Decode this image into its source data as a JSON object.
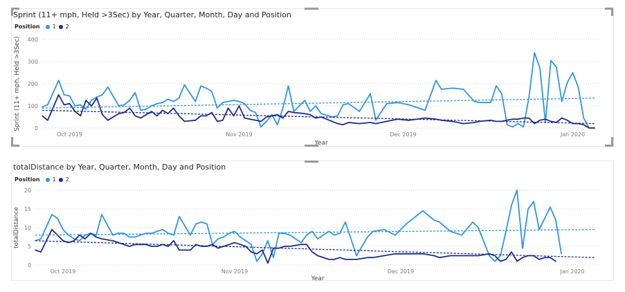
{
  "colors": {
    "position1": "#2f94e6",
    "position2": "#1c2a8a",
    "trend": "#1c2a8a"
  },
  "legend": {
    "title": "Position",
    "items": [
      "1",
      "2"
    ]
  },
  "chart_data": [
    {
      "type": "line",
      "title": "Sprint (11+ mph, Held >3Sec) by Year, Quarter, Month, Day and Position",
      "xlabel": "Year",
      "ylabel": "Sprint (11+ mph, Held >3Sec)",
      "ylim": [
        0,
        400
      ],
      "yticks": [
        "0",
        "100",
        "200",
        "300",
        "400"
      ],
      "xticks": [
        {
          "label": "Oct 2019",
          "x": 5
        },
        {
          "label": "Nov 2019",
          "x": 36
        },
        {
          "label": "Dec 2019",
          "x": 66
        },
        {
          "label": "Jan 2020",
          "x": 97
        }
      ],
      "xlim": [
        0,
        102
      ],
      "series": [
        {
          "name": "1",
          "x": [
            0,
            1,
            3,
            4,
            5,
            6,
            7,
            8,
            9,
            10,
            11,
            12,
            14,
            15,
            16,
            17,
            18,
            19,
            20,
            21,
            22,
            23,
            24,
            25,
            26,
            28,
            29,
            30,
            31,
            32,
            33,
            34,
            35,
            36,
            37,
            38,
            39,
            40,
            41,
            42,
            43,
            44,
            45,
            46,
            48,
            49,
            50,
            51,
            53,
            54,
            55,
            56,
            58,
            60,
            61,
            63,
            65,
            67,
            70,
            72,
            73,
            75,
            77,
            79,
            80,
            82,
            83,
            84,
            85,
            86,
            87,
            88,
            89,
            90,
            91,
            92,
            93,
            94,
            95,
            96,
            97,
            98,
            99,
            100,
            101
          ],
          "values": [
            95,
            105,
            215,
            150,
            145,
            100,
            105,
            85,
            125,
            140,
            150,
            185,
            100,
            105,
            125,
            160,
            80,
            85,
            100,
            110,
            115,
            130,
            120,
            135,
            195,
            120,
            190,
            180,
            165,
            90,
            115,
            120,
            125,
            120,
            110,
            80,
            70,
            5,
            30,
            60,
            15,
            90,
            190,
            75,
            125,
            75,
            100,
            65,
            50,
            55,
            105,
            110,
            75,
            155,
            35,
            110,
            115,
            105,
            80,
            215,
            175,
            180,
            175,
            120,
            115,
            115,
            190,
            155,
            15,
            5,
            20,
            5,
            140,
            340,
            270,
            25,
            305,
            275,
            120,
            205,
            250,
            185,
            45,
            0,
            0
          ]
        },
        {
          "name": "2",
          "x": [
            0,
            1,
            3,
            4,
            5,
            6,
            7,
            8,
            9,
            10,
            11,
            12,
            14,
            15,
            16,
            17,
            18,
            19,
            20,
            21,
            22,
            23,
            24,
            25,
            26,
            28,
            29,
            30,
            31,
            32,
            33,
            34,
            35,
            36,
            37,
            38,
            39,
            40,
            41,
            42,
            43,
            44,
            45,
            46,
            48,
            49,
            50,
            51,
            53,
            54,
            55,
            56,
            58,
            60,
            61,
            63,
            65,
            67,
            70,
            72,
            73,
            75,
            77,
            79,
            80,
            82,
            83,
            84,
            85,
            86,
            87,
            88,
            89,
            90,
            91,
            92,
            93,
            94,
            95,
            96,
            97,
            98,
            99,
            100,
            101
          ],
          "values": [
            55,
            35,
            150,
            105,
            110,
            75,
            55,
            125,
            100,
            135,
            60,
            35,
            65,
            70,
            90,
            55,
            45,
            60,
            75,
            55,
            80,
            65,
            90,
            55,
            30,
            35,
            55,
            55,
            70,
            30,
            35,
            90,
            55,
            100,
            45,
            40,
            35,
            30,
            50,
            55,
            60,
            45,
            75,
            70,
            65,
            60,
            45,
            50,
            30,
            20,
            15,
            25,
            20,
            25,
            20,
            30,
            40,
            35,
            45,
            40,
            35,
            30,
            20,
            25,
            30,
            35,
            30,
            30,
            35,
            40,
            40,
            45,
            45,
            20,
            35,
            40,
            30,
            25,
            45,
            35,
            20,
            20,
            15,
            0,
            0
          ]
        }
      ],
      "trends": [
        {
          "name": "1",
          "values": [
            90,
            135
          ]
        },
        {
          "name": "2",
          "values": [
            80,
            20
          ]
        }
      ]
    },
    {
      "type": "line",
      "title": "totalDistance by Year, Quarter, Month, Day and Position",
      "xlabel": "Year",
      "ylabel": "totalDistance",
      "ylim": [
        0,
        20
      ],
      "yticks": [
        "0",
        "5",
        "10",
        "15",
        "20"
      ],
      "xticks": [
        {
          "label": "Oct 2019",
          "x": 5
        },
        {
          "label": "Nov 2019",
          "x": 36
        },
        {
          "label": "Dec 2019",
          "x": 66
        },
        {
          "label": "Jan 2020",
          "x": 97
        }
      ],
      "xlim": [
        0,
        102
      ],
      "series": [
        {
          "name": "1",
          "x": [
            0,
            1,
            3,
            4,
            5,
            6,
            7,
            8,
            9,
            10,
            11,
            12,
            14,
            15,
            16,
            17,
            18,
            19,
            20,
            21,
            22,
            23,
            24,
            25,
            26,
            28,
            29,
            30,
            31,
            32,
            33,
            34,
            35,
            36,
            37,
            38,
            39,
            40,
            41,
            42,
            43,
            44,
            45,
            46,
            48,
            49,
            50,
            51,
            53,
            54,
            55,
            56,
            58,
            60,
            61,
            63,
            65,
            67,
            70,
            72,
            73,
            75,
            77,
            79,
            80,
            82,
            83,
            84,
            85,
            86,
            87,
            88,
            89,
            90,
            91,
            92,
            93,
            94,
            95,
            96,
            97,
            98,
            99,
            100,
            101
          ],
          "values": [
            6.5,
            7,
            13.5,
            12.5,
            9.5,
            8,
            7,
            6.5,
            8,
            8.5,
            8,
            13.5,
            8,
            8.5,
            8.5,
            7.5,
            7.5,
            8,
            8.5,
            8.5,
            9,
            9.5,
            8.5,
            8,
            13,
            8,
            11,
            11.5,
            11,
            5.5,
            7,
            7.5,
            8.5,
            9,
            7.5,
            6.5,
            5.5,
            1,
            3,
            6.5,
            2,
            8.5,
            8.5,
            8,
            6,
            8,
            9,
            7,
            9,
            8,
            8.5,
            11.5,
            2.5,
            7.5,
            9,
            9.5,
            8,
            11,
            14.5,
            12,
            11.5,
            9,
            8,
            11.5,
            10,
            2.5,
            1,
            2.5,
            9,
            16,
            20,
            4.5,
            15,
            17,
            9.5,
            12.5,
            15.5,
            12,
            3,
            0,
            0,
            0,
            0,
            0,
            0
          ],
          "n": 79
        },
        {
          "name": "2",
          "x": [
            0,
            1,
            3,
            4,
            5,
            6,
            7,
            8,
            9,
            10,
            11,
            12,
            14,
            15,
            16,
            17,
            18,
            19,
            20,
            21,
            22,
            23,
            24,
            25,
            26,
            28,
            29,
            30,
            31,
            32,
            33,
            34,
            35,
            36,
            37,
            38,
            39,
            40,
            41,
            42,
            43,
            44,
            45,
            46,
            48,
            49,
            50,
            51,
            53,
            54,
            55,
            56,
            58,
            60,
            61,
            63,
            65,
            67,
            70,
            72,
            73,
            75,
            77,
            79,
            80,
            82,
            83,
            84,
            85,
            86,
            87,
            88,
            89,
            90,
            91,
            92,
            93,
            94,
            95,
            96,
            97,
            98,
            99,
            100,
            101
          ],
          "values": [
            4,
            3.5,
            9.5,
            8,
            6.5,
            6,
            6.5,
            8,
            7,
            8.5,
            7.5,
            7,
            6.5,
            6,
            5.5,
            5,
            5.5,
            5.5,
            5.5,
            5,
            5,
            5.5,
            5,
            6.5,
            4,
            4,
            5.5,
            5,
            5,
            5.5,
            4.5,
            5,
            5.5,
            6,
            5.5,
            5,
            3.5,
            3,
            4,
            0.5,
            4.5,
            4.5,
            5,
            5,
            5.5,
            5.5,
            3.5,
            2.5,
            1.5,
            1.5,
            2,
            1.5,
            1.5,
            2,
            2,
            2.5,
            3,
            3,
            3,
            2.5,
            2,
            2.5,
            2.5,
            2.5,
            2.5,
            3,
            2.5,
            1,
            1.5,
            3.5,
            1,
            2,
            2.5,
            2.5,
            1.5,
            2,
            2,
            1,
            0,
            0,
            0,
            0,
            0,
            0,
            0
          ],
          "n": 78
        }
      ],
      "trends": [
        {
          "name": "1",
          "values": [
            8,
            9.5
          ]
        },
        {
          "name": "2",
          "values": [
            6.5,
            2
          ]
        }
      ]
    }
  ]
}
